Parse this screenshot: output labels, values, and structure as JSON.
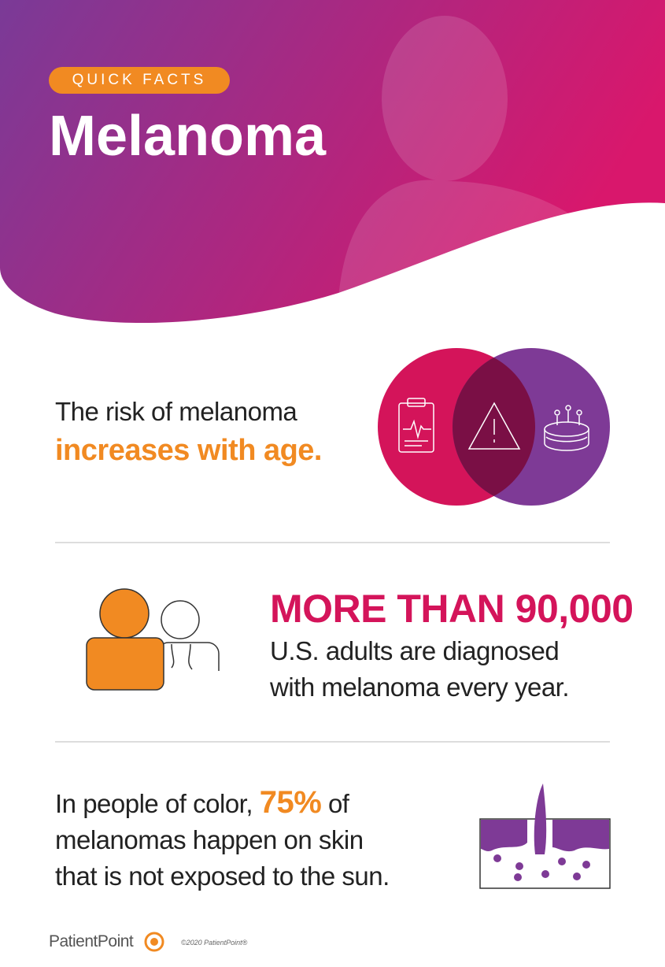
{
  "header": {
    "tag": "QUICK FACTS",
    "title": "Melanoma"
  },
  "facts": [
    {
      "lead": "The risk of melanoma",
      "highlight": "increases with age."
    },
    {
      "highlight": "MORE THAN 90,000",
      "lines": [
        "U.S. adults are diagnosed",
        "with melanoma every year."
      ]
    },
    {
      "lead": "In people of color,",
      "highlight": "75%",
      "after": "of",
      "lines": [
        "melanomas happen on skin",
        "that is not exposed to the sun."
      ]
    }
  ],
  "footer": {
    "brand": "PatientPoint",
    "copyright": "©2020 PatientPoint®"
  }
}
